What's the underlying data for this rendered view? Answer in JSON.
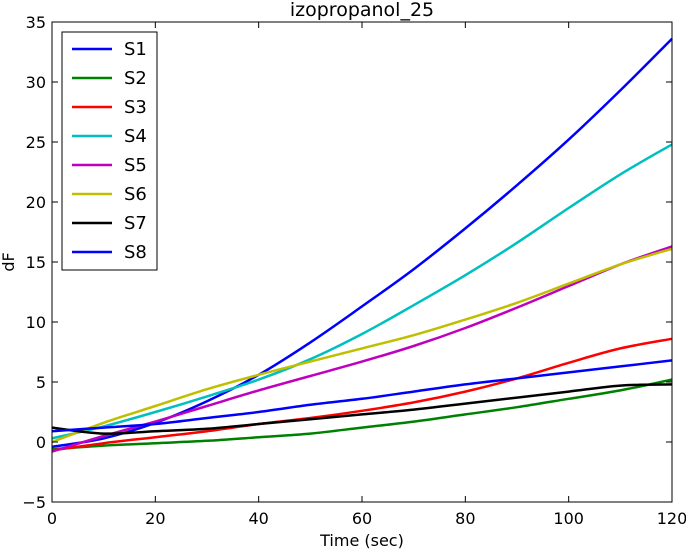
{
  "chart_data": {
    "type": "line",
    "title": "izopropanol_25",
    "xlabel": "Time (sec)",
    "ylabel": "dF",
    "xlim": [
      0,
      120
    ],
    "ylim": [
      -5,
      35
    ],
    "xticks": [
      0,
      20,
      40,
      60,
      80,
      100,
      120
    ],
    "yticks": [
      -5,
      0,
      5,
      10,
      15,
      20,
      25,
      30,
      35
    ],
    "grid": false,
    "legend_position": "top-left",
    "x": [
      0,
      10,
      20,
      30,
      40,
      50,
      60,
      70,
      80,
      90,
      100,
      110,
      120
    ],
    "series": [
      {
        "name": "S1",
        "color": "#0000ff",
        "values": [
          -0.4,
          0.3,
          1.6,
          3.4,
          5.6,
          8.3,
          11.3,
          14.4,
          17.8,
          21.4,
          25.2,
          29.3,
          33.6
        ]
      },
      {
        "name": "S2",
        "color": "#008000",
        "values": [
          -0.6,
          -0.3,
          -0.1,
          0.1,
          0.4,
          0.7,
          1.2,
          1.7,
          2.3,
          2.9,
          3.6,
          4.3,
          5.2
        ]
      },
      {
        "name": "S3",
        "color": "#ff0000",
        "values": [
          -0.7,
          -0.1,
          0.4,
          0.9,
          1.5,
          2.0,
          2.6,
          3.3,
          4.2,
          5.3,
          6.6,
          7.8,
          8.6
        ]
      },
      {
        "name": "S4",
        "color": "#00bfbf",
        "values": [
          0.3,
          1.3,
          2.5,
          3.8,
          5.2,
          6.9,
          9.0,
          11.4,
          13.9,
          16.6,
          19.5,
          22.3,
          24.8
        ]
      },
      {
        "name": "S5",
        "color": "#bf00bf",
        "values": [
          -0.8,
          0.5,
          1.7,
          3.0,
          4.3,
          5.5,
          6.7,
          8.0,
          9.5,
          11.2,
          13.0,
          14.8,
          16.3
        ]
      },
      {
        "name": "S6",
        "color": "#bfbf00",
        "values": [
          0.0,
          1.6,
          3.0,
          4.4,
          5.6,
          6.7,
          7.8,
          8.9,
          10.2,
          11.6,
          13.2,
          14.8,
          16.1
        ]
      },
      {
        "name": "S7",
        "color": "#000000",
        "values": [
          1.2,
          0.7,
          0.9,
          1.1,
          1.5,
          1.9,
          2.3,
          2.7,
          3.2,
          3.7,
          4.2,
          4.7,
          4.8
        ]
      },
      {
        "name": "S8",
        "color": "#0000ff",
        "values": [
          0.9,
          1.2,
          1.5,
          2.0,
          2.5,
          3.1,
          3.6,
          4.2,
          4.8,
          5.3,
          5.8,
          6.3,
          6.8
        ]
      }
    ]
  }
}
